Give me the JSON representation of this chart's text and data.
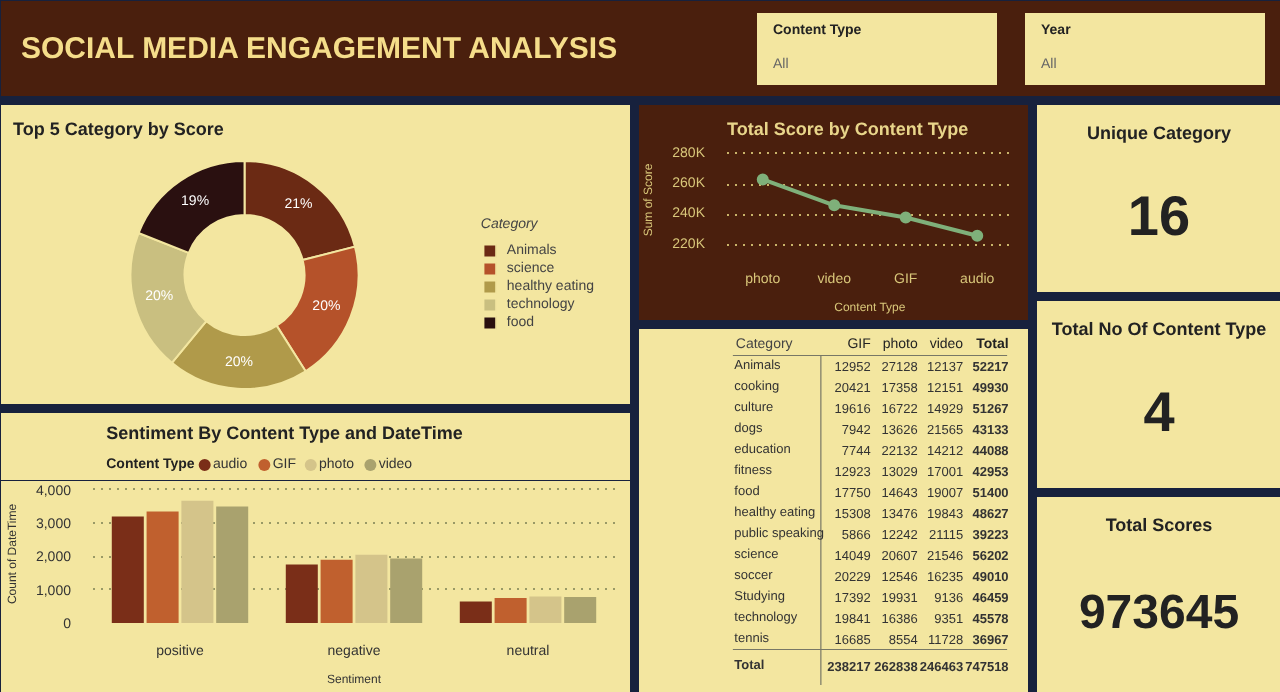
{
  "chart_data": [
    {
      "type": "other",
      "title": "SOCIAL MEDIA ENGAGEMENT ANALYSIS",
      "annotations": [
        "Content Type",
        "All",
        "Year",
        "All"
      ]
    },
    {
      "type": "donut",
      "title": "Top 5 Category by Score",
      "legend_title": "Category",
      "legend": "right",
      "categories": [
        "Animals",
        "science",
        "healthy eating",
        "technology",
        "food"
      ],
      "values": [
        21,
        20,
        20,
        20,
        19
      ],
      "value_labels": [
        "21%",
        "20%",
        "20%",
        "20%",
        "19%"
      ],
      "colors": [
        "#6b2a14",
        "#b5522a",
        "#b09a4a",
        "#c9bf80",
        "#2a1010"
      ]
    },
    {
      "type": "line",
      "title": "Total Score by Content Type",
      "xlabel": "Content Type",
      "ylabel": "Sum of Score",
      "categories": [
        "photo",
        "video",
        "GIF",
        "audio"
      ],
      "series": [
        {
          "color": "#7fb07a",
          "values": [
            263000,
            246000,
            238000,
            226000
          ]
        }
      ],
      "ylim": [
        216000,
        283000
      ],
      "yticks": [
        {
          "value": 220000,
          "label": "220K"
        },
        {
          "value": 240000,
          "label": "240K"
        },
        {
          "value": 260000,
          "label": "260K"
        },
        {
          "value": 280000,
          "label": "280K"
        }
      ],
      "grid": "y",
      "marker": "circle"
    },
    {
      "type": "other",
      "title": "Unique Category",
      "values": [
        16
      ],
      "data_labels": true
    },
    {
      "type": "other",
      "data_labels": true,
      "xlabel": "Category",
      "categories": [
        "Animals",
        "cooking",
        "culture",
        "dogs",
        "education",
        "fitness",
        "food",
        "healthy eating",
        "public speaking",
        "science",
        "soccer",
        "Studying",
        "technology",
        "tennis",
        "Total"
      ],
      "series": [
        {
          "name": "GIF",
          "values": [
            12952,
            20421,
            19616,
            7942,
            7744,
            12923,
            17750,
            15308,
            5866,
            14049,
            20229,
            17392,
            19841,
            16685,
            238217
          ]
        },
        {
          "name": "photo",
          "values": [
            27128,
            17358,
            16722,
            13626,
            22132,
            13029,
            14643,
            13476,
            12242,
            20607,
            12546,
            19931,
            16386,
            8554,
            262838
          ]
        },
        {
          "name": "video",
          "values": [
            12137,
            12151,
            14929,
            21565,
            14212,
            17001,
            19007,
            19843,
            21115,
            21546,
            16235,
            9136,
            9351,
            11728,
            246463
          ]
        },
        {
          "name": "Total",
          "values": [
            52217,
            49930,
            51267,
            43133,
            44088,
            42953,
            51400,
            48627,
            39223,
            56202,
            49010,
            46459,
            45578,
            36967,
            747518
          ]
        }
      ]
    },
    {
      "type": "other",
      "title": "Total No Of Content Type",
      "values": [
        4
      ],
      "data_labels": true
    },
    {
      "type": "bar",
      "title": "Sentiment By Content Type and DateTime",
      "xlabel": "Sentiment",
      "ylabel": "Count of DateTime",
      "legend_title": "Content Type",
      "legend": "top left",
      "categories": [
        "positive",
        "negative",
        "neutral"
      ],
      "series": [
        {
          "name": "audio",
          "color": "#7a2e18",
          "values": [
            3200,
            1760,
            650
          ]
        },
        {
          "name": "GIF",
          "color": "#c0602e",
          "values": [
            3350,
            1900,
            750
          ]
        },
        {
          "name": "photo",
          "color": "#d4c48a",
          "values": [
            3680,
            2050,
            800
          ]
        },
        {
          "name": "video",
          "color": "#a9a26e",
          "values": [
            3500,
            1940,
            780
          ]
        }
      ],
      "ylim": [
        0,
        4150
      ],
      "yticks": [
        0,
        {
          "value": 1000,
          "label": "1,000"
        },
        {
          "value": 2000,
          "label": "2,000"
        },
        {
          "value": 3000,
          "label": "3,000"
        },
        {
          "value": 4000,
          "label": "4,000"
        }
      ],
      "grid": "y"
    },
    {
      "type": "other",
      "title": "Total Scores",
      "values": [
        973645
      ],
      "data_labels": true
    }
  ]
}
